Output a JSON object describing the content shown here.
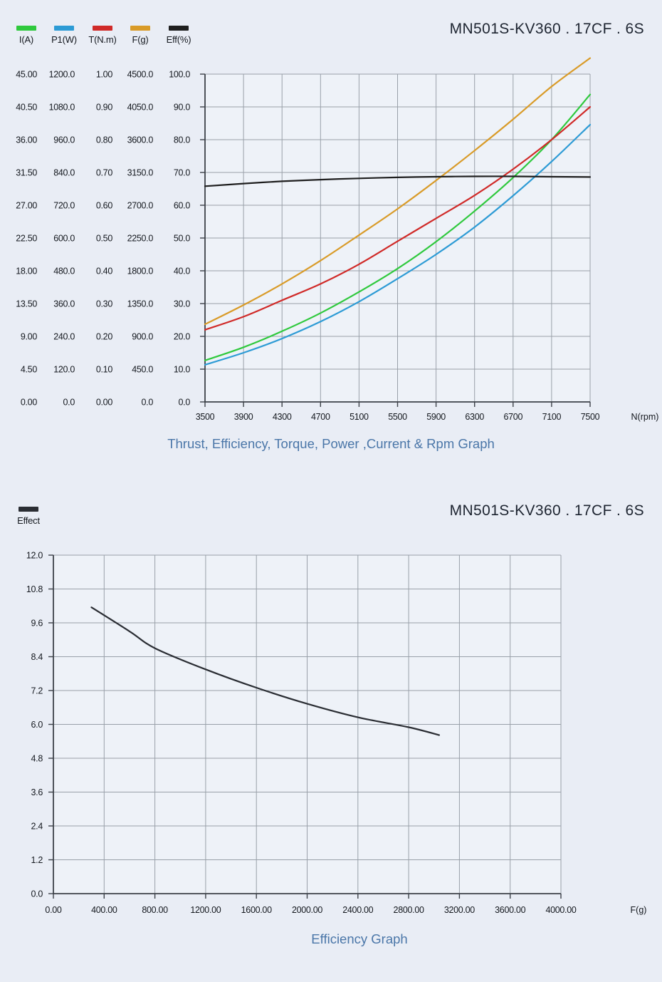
{
  "colors": {
    "background": "#e9edf5",
    "plot_background": "#eef2f8",
    "grid": "#99a0a9",
    "axis": "#3c4148",
    "tick_text": "#14181e",
    "title_text": "#1d2430",
    "subtitle_text": "#4a76a8"
  },
  "chart_data": [
    {
      "type": "line",
      "title": "MN501S-KV360 . 17CF . 6S",
      "subtitle": "Thrust, Efficiency, Torque, Power ,Current & Rpm Graph",
      "xlabel": "N(rpm)",
      "xlim": [
        3500,
        7500
      ],
      "grid": true,
      "legend_position": "top-left",
      "x_ticks": [
        3500,
        3900,
        4300,
        4700,
        5100,
        5500,
        5900,
        6300,
        6700,
        7100,
        7500
      ],
      "x_tick_labels": [
        "3500",
        "3900",
        "4300",
        "4700",
        "5100",
        "5500",
        "5900",
        "6300",
        "6700",
        "7100",
        "7500"
      ],
      "y_axes": [
        {
          "name": "I(A)",
          "max": 45,
          "tick_labels": [
            "45.00",
            "40.50",
            "36.00",
            "31.50",
            "27.00",
            "22.50",
            "18.00",
            "13.50",
            "9.00",
            "4.50",
            "0.00"
          ]
        },
        {
          "name": "P1(W)",
          "max": 1200,
          "tick_labels": [
            "1200.0",
            "1080.0",
            "960.0",
            "840.0",
            "720.0",
            "600.0",
            "480.0",
            "360.0",
            "240.0",
            "120.0",
            "0.0"
          ]
        },
        {
          "name": "T(N.m)",
          "max": 1.0,
          "tick_labels": [
            "1.00",
            "0.90",
            "0.80",
            "0.70",
            "0.60",
            "0.50",
            "0.40",
            "0.30",
            "0.20",
            "0.10",
            "0.00"
          ]
        },
        {
          "name": "F(g)",
          "max": 4500,
          "tick_labels": [
            "4500.0",
            "4050.0",
            "3600.0",
            "3150.0",
            "2700.0",
            "2250.0",
            "1800.0",
            "1350.0",
            "900.0",
            "450.0",
            "0.0"
          ]
        },
        {
          "name": "Eff(%)",
          "max": 100,
          "tick_labels": [
            "100.0",
            "90.0",
            "80.0",
            "70.0",
            "60.0",
            "50.0",
            "40.0",
            "30.0",
            "20.0",
            "10.0",
            "0.0"
          ]
        }
      ],
      "series": [
        {
          "name": "I(A)",
          "color": "#2fc93d",
          "axis_max": 45,
          "values": [
            5.7,
            7.5,
            9.7,
            12.2,
            15.1,
            18.3,
            22.0,
            26.2,
            30.8,
            36.0,
            42.2
          ]
        },
        {
          "name": "P1(W)",
          "color": "#2d9bd5",
          "axis_max": 1200,
          "values": [
            136,
            180,
            232,
            294,
            367,
            451,
            540,
            640,
            755,
            880,
            1015
          ]
        },
        {
          "name": "T(N.m)",
          "color": "#d02a28",
          "axis_max": 1.0,
          "values": [
            0.22,
            0.26,
            0.31,
            0.36,
            0.42,
            0.49,
            0.56,
            0.63,
            0.71,
            0.8,
            0.9
          ]
        },
        {
          "name": "F(g)",
          "color": "#d99b28",
          "axis_max": 4500,
          "values": [
            1066,
            1330,
            1620,
            1940,
            2290,
            2650,
            3040,
            3450,
            3880,
            4330,
            4720
          ]
        },
        {
          "name": "Eff(%)",
          "color": "#1f1f1f",
          "axis_max": 100,
          "values": [
            65.8,
            66.6,
            67.3,
            67.8,
            68.2,
            68.5,
            68.7,
            68.8,
            68.8,
            68.7,
            68.6
          ]
        }
      ]
    },
    {
      "type": "line",
      "title": "MN501S-KV360 . 17CF . 6S",
      "subtitle": "Efficiency Graph",
      "xlabel": "F(g)",
      "xlim": [
        0,
        4000
      ],
      "ylim": [
        0,
        12
      ],
      "grid": true,
      "legend_position": "top-left",
      "x_ticks": [
        0,
        400,
        800,
        1200,
        1600,
        2000,
        2400,
        2800,
        3200,
        3600,
        4000
      ],
      "x_tick_labels": [
        "0.00",
        "400.00",
        "800.00",
        "1200.00",
        "1600.00",
        "2000.00",
        "2400.00",
        "2800.00",
        "3200.00",
        "3600.00",
        "4000.00"
      ],
      "y_axes": [
        {
          "name": "Effect",
          "max": 12,
          "tick_labels": [
            "12.0",
            "10.8",
            "9.6",
            "8.4",
            "7.2",
            "6.0",
            "4.8",
            "3.6",
            "2.4",
            "1.2",
            "0.0"
          ]
        }
      ],
      "series": [
        {
          "name": "Effect",
          "color": "#2a2d33",
          "axis_max": 12,
          "points": [
            [
              300,
              10.15
            ],
            [
              600,
              9.3
            ],
            [
              800,
              8.7
            ],
            [
              1200,
              7.95
            ],
            [
              1600,
              7.3
            ],
            [
              2000,
              6.73
            ],
            [
              2400,
              6.25
            ],
            [
              2800,
              5.9
            ],
            [
              3040,
              5.62
            ]
          ]
        }
      ]
    }
  ]
}
